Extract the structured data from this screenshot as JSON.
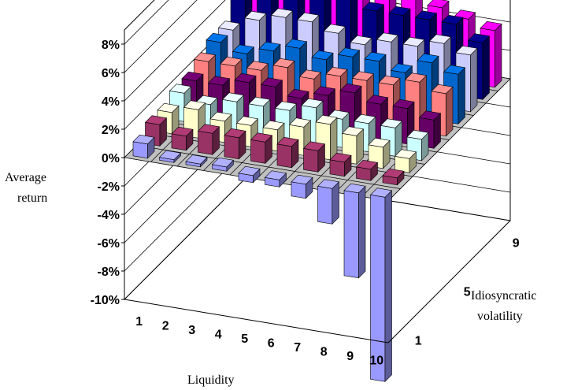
{
  "chart_data": {
    "type": "bar",
    "subtype": "3d-column",
    "x_axis": {
      "label": "Liquidity",
      "categories": [
        "1",
        "2",
        "3",
        "4",
        "5",
        "6",
        "7",
        "8",
        "9",
        "10"
      ]
    },
    "y_axis": {
      "label": "Idiosyncratic volatility",
      "tick_labels": [
        "1",
        "5",
        "9"
      ],
      "series_count": 10
    },
    "z_axis": {
      "label_lines": [
        "Average",
        "return"
      ],
      "ticks": [
        "-10%",
        "-8%",
        "-6%",
        "-4%",
        "-2%",
        "0%",
        "2%",
        "4%",
        "6%",
        "8%"
      ],
      "range": [
        -10,
        9
      ]
    },
    "grid": true,
    "legend": "none",
    "series": [
      {
        "color": "#9999ff",
        "values": [
          1.0,
          0.2,
          0.2,
          0.3,
          -0.5,
          -0.5,
          -1.0,
          -2.5,
          -6.0,
          -13.0
        ]
      },
      {
        "color": "#993366",
        "values": [
          1.5,
          1.0,
          1.5,
          1.5,
          1.5,
          1.5,
          1.5,
          1.0,
          0.8,
          0.5
        ]
      },
      {
        "color": "#ffffcc",
        "values": [
          1.5,
          2.0,
          1.5,
          1.5,
          1.5,
          2.0,
          2.5,
          2.0,
          1.5,
          1.0
        ]
      },
      {
        "color": "#ccffff",
        "values": [
          2.0,
          1.5,
          2.0,
          2.0,
          2.0,
          2.5,
          2.0,
          2.0,
          2.0,
          1.5
        ]
      },
      {
        "color": "#660066",
        "values": [
          2.0,
          2.0,
          2.5,
          2.5,
          2.0,
          2.5,
          3.0,
          2.5,
          2.5,
          2.0
        ]
      },
      {
        "color": "#ff8080",
        "values": [
          2.5,
          2.5,
          2.5,
          3.0,
          2.5,
          3.0,
          3.0,
          3.0,
          3.5,
          3.0
        ]
      },
      {
        "color": "#0066cc",
        "values": [
          3.0,
          2.5,
          3.0,
          3.5,
          3.0,
          3.5,
          3.5,
          3.0,
          4.0,
          3.5
        ]
      },
      {
        "color": "#ccccff",
        "values": [
          3.0,
          4.0,
          4.5,
          4.5,
          4.0,
          3.5,
          4.0,
          4.0,
          4.5,
          4.0
        ]
      },
      {
        "color": "#000080",
        "values": [
          5.5,
          6.5,
          6.5,
          5.5,
          5.5,
          5.0,
          5.0,
          5.0,
          5.0,
          4.0
        ]
      },
      {
        "color": "#ff00ff",
        "values": [
          8.5,
          6.5,
          6.0,
          6.0,
          5.5,
          5.5,
          7.5,
          5.0,
          4.5,
          4.0
        ]
      }
    ]
  }
}
